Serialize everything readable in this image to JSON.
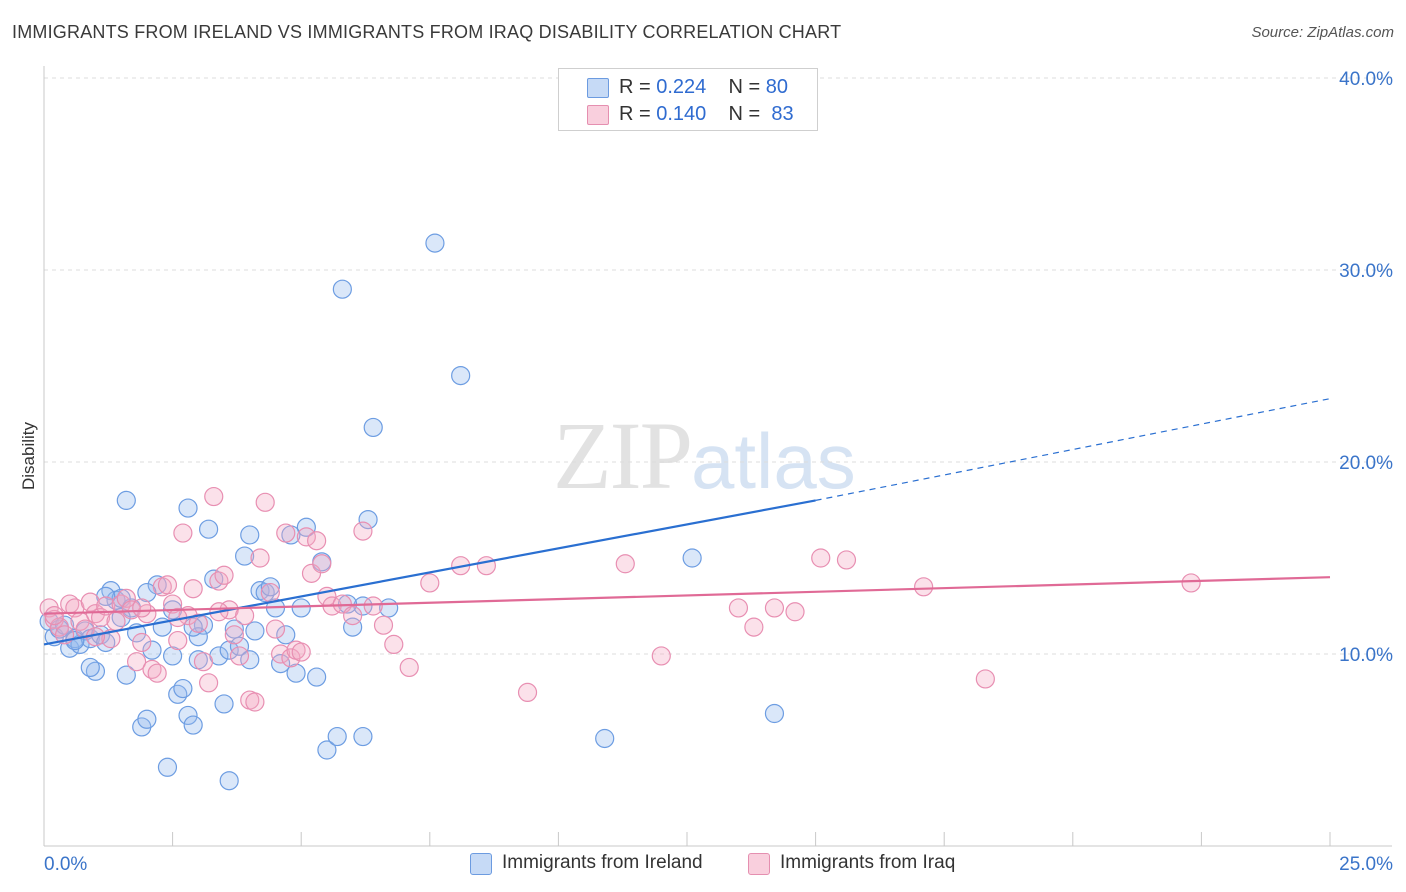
{
  "header": {
    "title": "IMMIGRANTS FROM IRELAND VS IMMIGRANTS FROM IRAQ DISABILITY CORRELATION CHART",
    "source": "Source: ZipAtlas.com"
  },
  "watermark": {
    "zip": "ZIP",
    "atlas": "atlas"
  },
  "legend_top": {
    "rows": [
      {
        "r_label": "R =",
        "r_value": "0.224",
        "n_label": "N =",
        "n_value": "80",
        "color": "#a9c6f0",
        "border": "#5b8fd6"
      },
      {
        "r_label": "R =",
        "r_value": "0.140",
        "n_label": "N =",
        "n_value": "83",
        "color": "#f7c1d3",
        "border": "#e07fa3"
      }
    ]
  },
  "legend_bottom": {
    "items": [
      {
        "label": "Immigrants from Ireland",
        "color": "#a9c6f0",
        "border": "#5b8fd6"
      },
      {
        "label": "Immigrants from Iraq",
        "color": "#f7c1d3",
        "border": "#e07fa3"
      }
    ]
  },
  "chart_data": {
    "type": "scatter",
    "title": "IMMIGRANTS FROM IRELAND VS IMMIGRANTS FROM IRAQ DISABILITY CORRELATION CHART",
    "xlabel": "",
    "ylabel": "Disability",
    "xlim": [
      0,
      25
    ],
    "ylim": [
      0,
      40
    ],
    "x_tick_labels": [
      "0.0%",
      "25.0%"
    ],
    "y_ticks": [
      10,
      20,
      30,
      40
    ],
    "y_tick_labels": [
      "10.0%",
      "20.0%",
      "30.0%",
      "40.0%"
    ],
    "grid": true,
    "legend": "top-center",
    "series": [
      {
        "name": "Immigrants from Ireland",
        "color": "#7aa7e6",
        "line_color": "#2a6fd1",
        "r": 0.224,
        "n": 80,
        "trend": {
          "x0": 0,
          "y0": 10.5,
          "x1": 15,
          "y1": 18.0,
          "dash_to_x": 25,
          "dash_to_y": 23.3
        },
        "points": [
          [
            0.1,
            11.7
          ],
          [
            0.2,
            10.9
          ],
          [
            0.3,
            11.3
          ],
          [
            0.5,
            10.3
          ],
          [
            0.6,
            10.8
          ],
          [
            0.7,
            10.5
          ],
          [
            0.8,
            11.2
          ],
          [
            0.9,
            10.8
          ],
          [
            1.0,
            9.1
          ],
          [
            1.1,
            11.0
          ],
          [
            1.2,
            10.6
          ],
          [
            1.3,
            13.3
          ],
          [
            1.4,
            12.8
          ],
          [
            1.5,
            12.9
          ],
          [
            1.6,
            8.9
          ],
          [
            1.7,
            12.4
          ],
          [
            1.8,
            11.1
          ],
          [
            1.9,
            6.2
          ],
          [
            2.0,
            6.6
          ],
          [
            2.1,
            10.2
          ],
          [
            2.2,
            13.6
          ],
          [
            2.3,
            11.4
          ],
          [
            2.4,
            4.1
          ],
          [
            2.5,
            9.9
          ],
          [
            2.6,
            7.9
          ],
          [
            2.7,
            8.2
          ],
          [
            2.8,
            6.8
          ],
          [
            2.9,
            6.3
          ],
          [
            3.0,
            9.7
          ],
          [
            3.1,
            11.5
          ],
          [
            3.2,
            16.5
          ],
          [
            3.3,
            13.9
          ],
          [
            3.4,
            9.9
          ],
          [
            3.5,
            7.4
          ],
          [
            3.6,
            10.2
          ],
          [
            3.7,
            11.3
          ],
          [
            3.8,
            10.4
          ],
          [
            3.9,
            15.1
          ],
          [
            4.0,
            16.2
          ],
          [
            4.1,
            11.2
          ],
          [
            4.2,
            13.3
          ],
          [
            4.3,
            13.2
          ],
          [
            4.4,
            13.5
          ],
          [
            4.5,
            12.4
          ],
          [
            4.6,
            9.5
          ],
          [
            4.7,
            11.0
          ],
          [
            4.8,
            16.2
          ],
          [
            4.9,
            9.0
          ],
          [
            5.0,
            12.4
          ],
          [
            5.1,
            16.6
          ],
          [
            5.3,
            8.8
          ],
          [
            5.4,
            14.8
          ],
          [
            5.5,
            5.0
          ],
          [
            5.8,
            29.0
          ],
          [
            6.0,
            11.4
          ],
          [
            6.2,
            12.5
          ],
          [
            6.3,
            17.0
          ],
          [
            6.4,
            21.8
          ],
          [
            6.7,
            12.4
          ],
          [
            1.6,
            18.0
          ],
          [
            2.0,
            13.2
          ],
          [
            2.8,
            17.6
          ],
          [
            5.7,
            5.7
          ],
          [
            5.9,
            12.6
          ],
          [
            6.2,
            5.7
          ],
          [
            7.6,
            31.4
          ],
          [
            8.1,
            24.5
          ],
          [
            10.9,
            5.6
          ],
          [
            12.6,
            15.0
          ],
          [
            14.2,
            6.9
          ],
          [
            0.4,
            11.5
          ],
          [
            0.6,
            10.7
          ],
          [
            0.9,
            9.3
          ],
          [
            1.2,
            13.0
          ],
          [
            1.5,
            11.9
          ],
          [
            2.5,
            12.3
          ],
          [
            3.0,
            10.9
          ],
          [
            3.6,
            3.4
          ],
          [
            2.9,
            11.4
          ],
          [
            4.0,
            9.7
          ]
        ]
      },
      {
        "name": "Immigrants from Iraq",
        "color": "#f2a5bf",
        "line_color": "#e06a96",
        "r": 0.14,
        "n": 83,
        "trend": {
          "x0": 0,
          "y0": 12.1,
          "x1": 25,
          "y1": 14.0
        },
        "points": [
          [
            0.1,
            12.4
          ],
          [
            0.2,
            11.8
          ],
          [
            0.3,
            11.4
          ],
          [
            0.4,
            11.0
          ],
          [
            0.5,
            12.6
          ],
          [
            0.6,
            12.4
          ],
          [
            0.7,
            11.7
          ],
          [
            0.8,
            11.3
          ],
          [
            0.9,
            12.7
          ],
          [
            1.0,
            12.1
          ],
          [
            1.1,
            11.9
          ],
          [
            1.2,
            12.5
          ],
          [
            1.3,
            10.8
          ],
          [
            1.4,
            11.7
          ],
          [
            1.5,
            12.6
          ],
          [
            1.6,
            12.9
          ],
          [
            1.7,
            12.3
          ],
          [
            1.8,
            9.6
          ],
          [
            1.9,
            10.6
          ],
          [
            2.0,
            12.1
          ],
          [
            2.1,
            9.2
          ],
          [
            2.2,
            9.0
          ],
          [
            2.3,
            13.5
          ],
          [
            2.4,
            13.6
          ],
          [
            2.5,
            12.6
          ],
          [
            2.6,
            10.7
          ],
          [
            2.7,
            16.3
          ],
          [
            2.8,
            12.0
          ],
          [
            2.9,
            13.4
          ],
          [
            3.0,
            11.6
          ],
          [
            3.1,
            9.6
          ],
          [
            3.2,
            8.5
          ],
          [
            3.3,
            18.2
          ],
          [
            3.4,
            13.8
          ],
          [
            3.5,
            14.1
          ],
          [
            3.6,
            12.3
          ],
          [
            3.7,
            11.0
          ],
          [
            3.8,
            9.9
          ],
          [
            3.9,
            12.0
          ],
          [
            4.0,
            7.6
          ],
          [
            4.1,
            7.5
          ],
          [
            4.2,
            15.0
          ],
          [
            4.3,
            17.9
          ],
          [
            4.4,
            13.2
          ],
          [
            4.5,
            11.3
          ],
          [
            4.6,
            10.0
          ],
          [
            4.7,
            16.3
          ],
          [
            4.8,
            9.8
          ],
          [
            4.9,
            10.2
          ],
          [
            5.0,
            10.1
          ],
          [
            5.1,
            16.1
          ],
          [
            5.2,
            14.2
          ],
          [
            5.3,
            15.9
          ],
          [
            5.4,
            14.7
          ],
          [
            5.5,
            13.0
          ],
          [
            5.6,
            12.5
          ],
          [
            5.8,
            12.6
          ],
          [
            6.0,
            12.0
          ],
          [
            6.2,
            16.4
          ],
          [
            6.4,
            12.5
          ],
          [
            6.6,
            11.5
          ],
          [
            6.8,
            10.5
          ],
          [
            7.1,
            9.3
          ],
          [
            7.5,
            13.7
          ],
          [
            8.1,
            14.6
          ],
          [
            8.6,
            14.6
          ],
          [
            9.4,
            8.0
          ],
          [
            11.3,
            14.7
          ],
          [
            12.0,
            9.9
          ],
          [
            13.5,
            12.4
          ],
          [
            13.8,
            11.4
          ],
          [
            14.2,
            12.4
          ],
          [
            14.6,
            12.2
          ],
          [
            15.1,
            15.0
          ],
          [
            15.6,
            14.9
          ],
          [
            17.1,
            13.5
          ],
          [
            18.3,
            8.7
          ],
          [
            22.3,
            13.7
          ],
          [
            0.2,
            12.0
          ],
          [
            1.0,
            10.9
          ],
          [
            1.9,
            12.4
          ],
          [
            2.6,
            11.9
          ],
          [
            3.4,
            12.2
          ]
        ]
      }
    ]
  }
}
